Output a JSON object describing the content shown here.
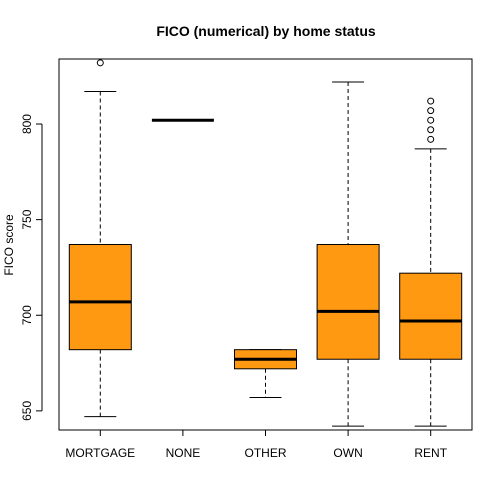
{
  "chart_data": {
    "type": "box",
    "title": "FICO (numerical) by home status",
    "xlabel": "",
    "ylabel": "FICO score",
    "ylim": [
      640,
      834
    ],
    "y_ticks": [
      650,
      700,
      750,
      800
    ],
    "grid": false,
    "legend": "none",
    "box_color": "#ff9912",
    "categories": [
      "MORTGAGE",
      "NONE",
      "OTHER",
      "OWN",
      "RENT"
    ],
    "series": [
      {
        "category": "MORTGAGE",
        "whisker_low": 647,
        "q1": 682,
        "median": 707,
        "q3": 737,
        "whisker_high": 817,
        "outliers": [
          832
        ]
      },
      {
        "category": "NONE",
        "whisker_low": 802,
        "q1": 802,
        "median": 802,
        "q3": 802,
        "whisker_high": 802,
        "outliers": []
      },
      {
        "category": "OTHER",
        "whisker_low": 657,
        "q1": 672,
        "median": 677,
        "q3": 682,
        "whisker_high": 682,
        "outliers": []
      },
      {
        "category": "OWN",
        "whisker_low": 642,
        "q1": 677,
        "median": 702,
        "q3": 737,
        "whisker_high": 822,
        "outliers": []
      },
      {
        "category": "RENT",
        "whisker_low": 642,
        "q1": 677,
        "median": 697,
        "q3": 722,
        "whisker_high": 787,
        "outliers": [
          792,
          797,
          802,
          807,
          812
        ]
      }
    ]
  }
}
